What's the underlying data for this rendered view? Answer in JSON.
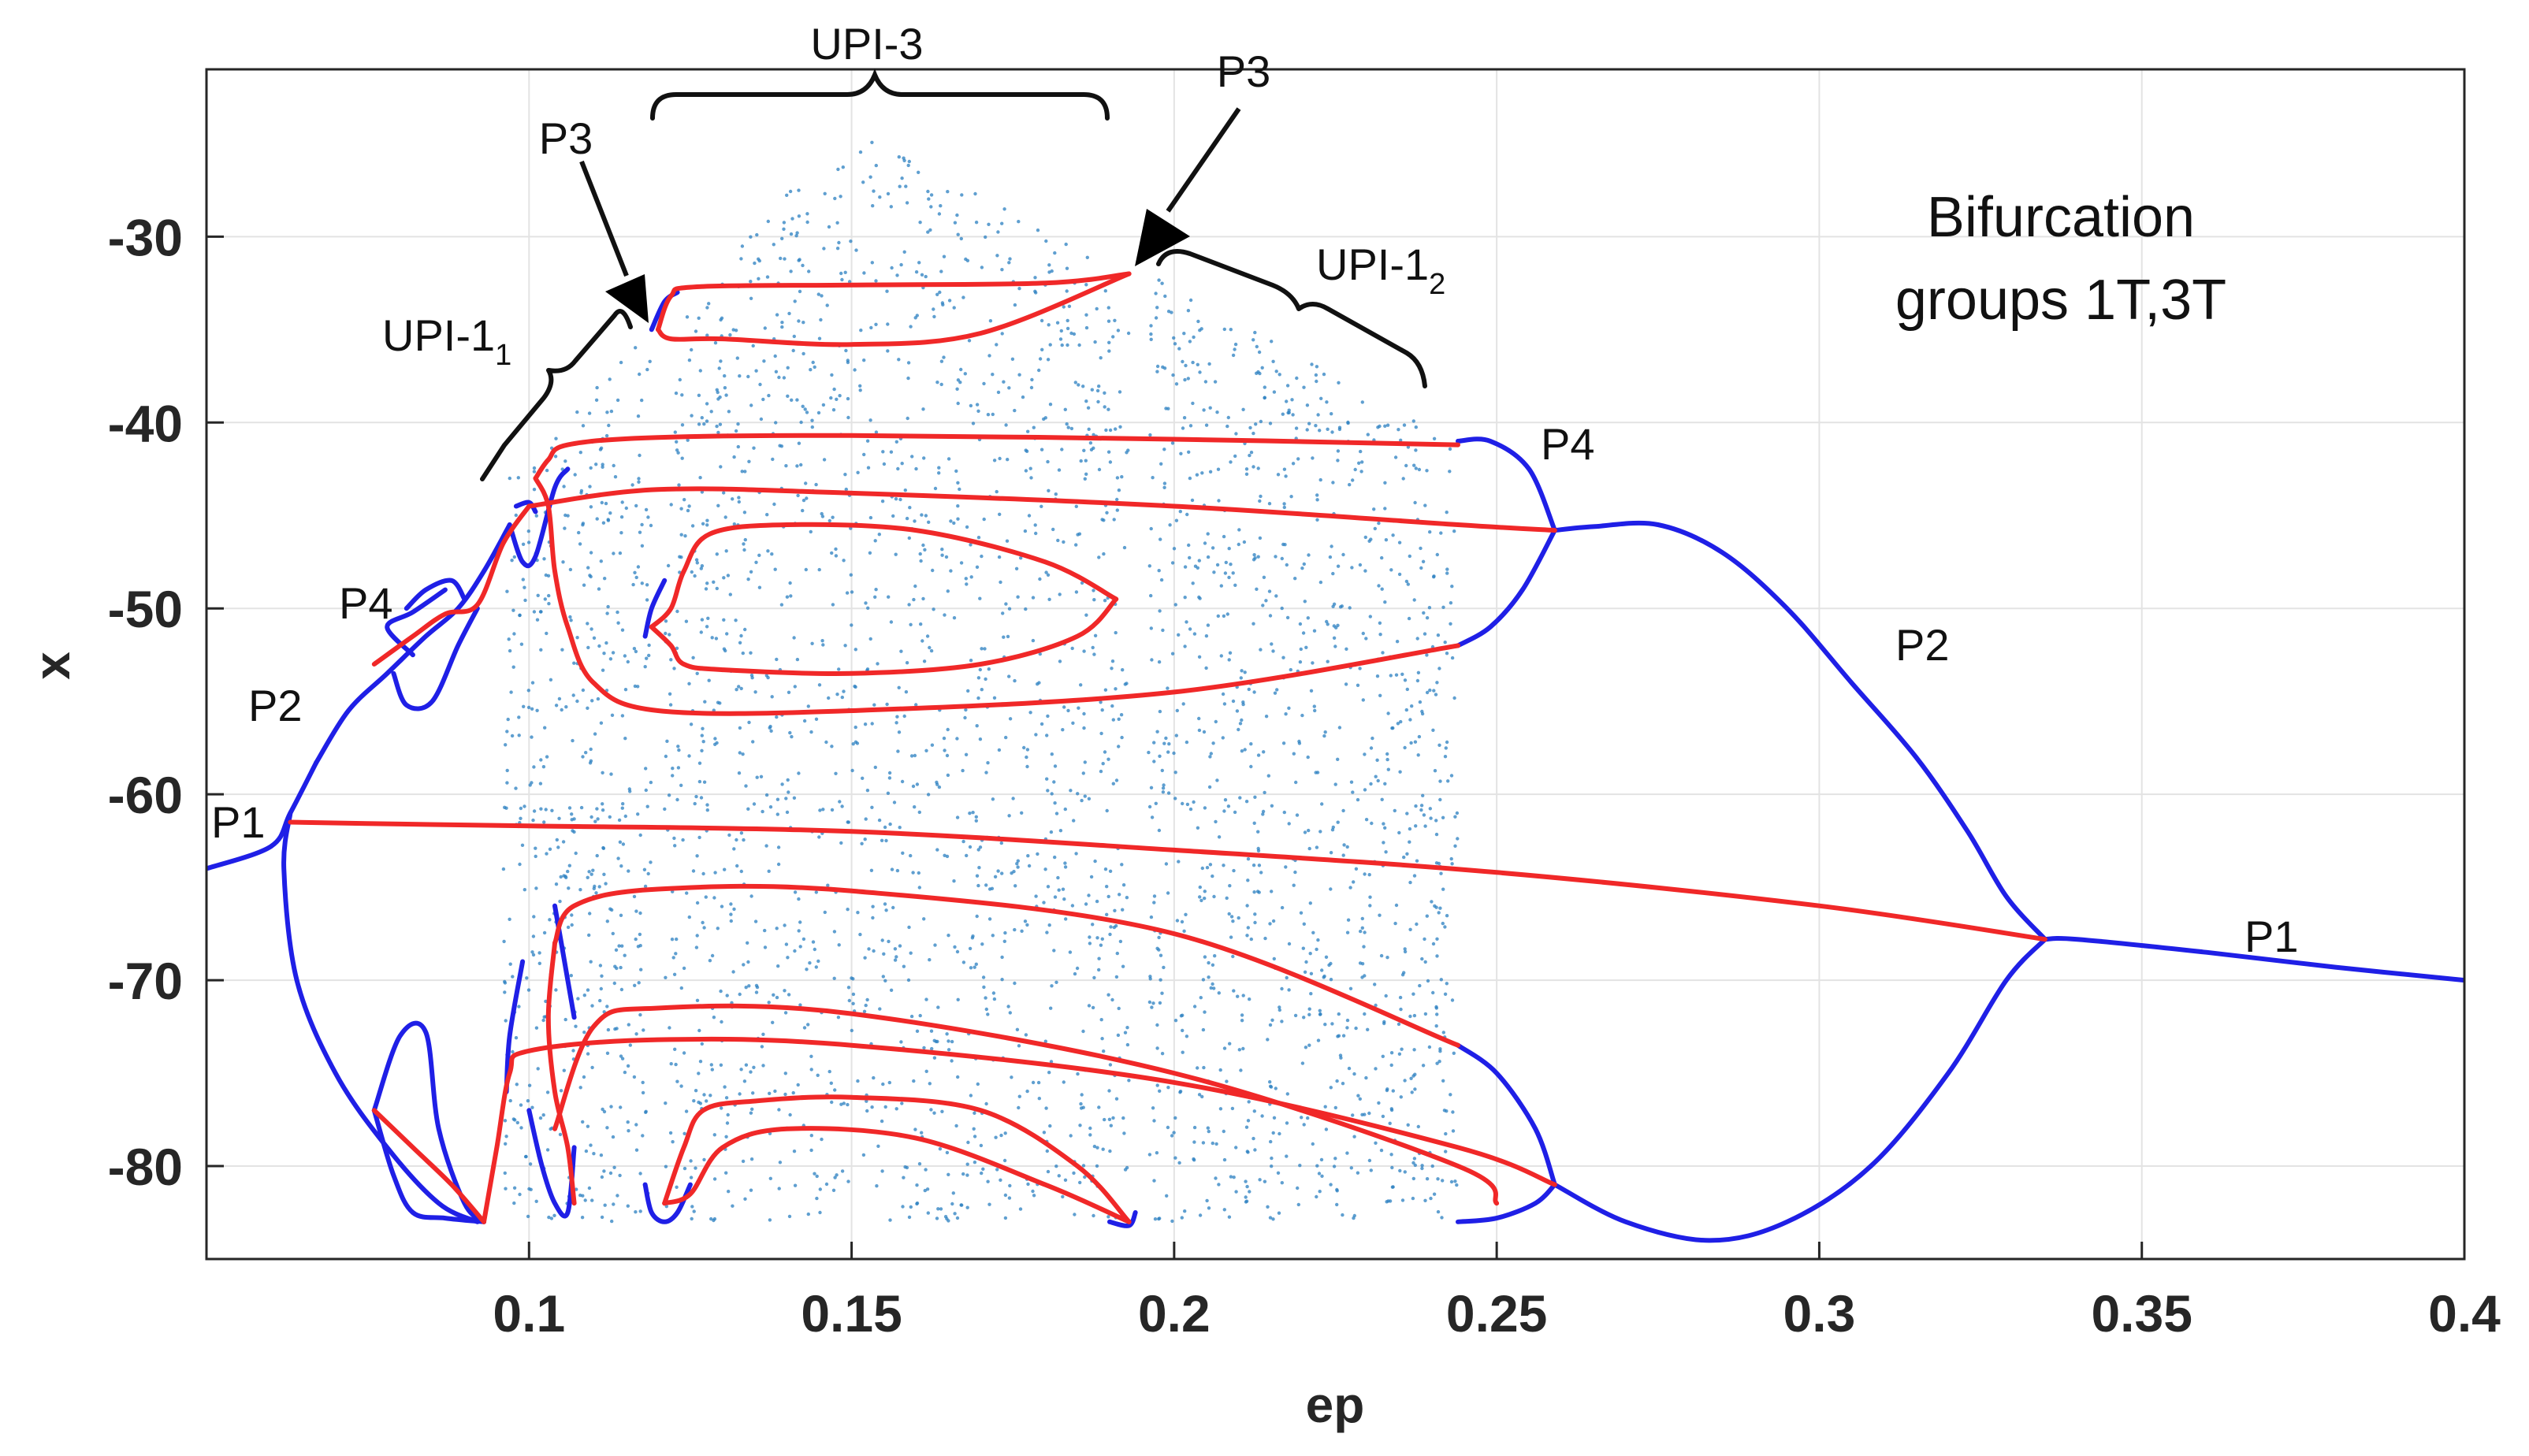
{
  "chart_data": {
    "type": "scatter",
    "title": "",
    "xlabel": "ep",
    "ylabel": "x",
    "xlim": [
      0.05,
      0.4
    ],
    "ylim": [
      -85,
      -21
    ],
    "grid": true,
    "x_ticks": [
      {
        "value": 0.1,
        "label": "0.1"
      },
      {
        "value": 0.15,
        "label": "0.15"
      },
      {
        "value": 0.2,
        "label": "0.2"
      },
      {
        "value": 0.25,
        "label": "0.25"
      },
      {
        "value": 0.3,
        "label": "0.3"
      },
      {
        "value": 0.35,
        "label": "0.35"
      },
      {
        "value": 0.4,
        "label": "0.4"
      }
    ],
    "y_ticks": [
      {
        "value": -30,
        "label": "-30"
      },
      {
        "value": -40,
        "label": "-40"
      },
      {
        "value": -50,
        "label": "-50"
      },
      {
        "value": -60,
        "label": "-60"
      },
      {
        "value": -70,
        "label": "-70"
      },
      {
        "value": -80,
        "label": "-80"
      }
    ],
    "colors": {
      "stable": "#1f1fe6",
      "unstable": "#f02828",
      "chaos": "#2a7fc0",
      "grid": "#e3e3e3"
    },
    "chaos_regions": [
      {
        "x_start": 0.096,
        "x_end": 0.119,
        "x_peak": 0.119,
        "y_top_left": -43,
        "y_top_peak": -35,
        "y_bottom": -83
      },
      {
        "x_start": 0.121,
        "x_end": 0.193,
        "x_peak": 0.149,
        "y_top_left": -35,
        "y_top_peak": -24,
        "y_top_right": -32,
        "y_bottom": -83
      },
      {
        "x_start": 0.196,
        "x_end": 0.244,
        "x_peak": 0.196,
        "y_top_left": -32,
        "y_top_right": -41,
        "y_bottom": -83
      }
    ],
    "series": [
      {
        "role": "stable",
        "points": [
          [
            0.05,
            -64
          ],
          [
            0.06,
            -62.8
          ],
          [
            0.063,
            -61
          ],
          [
            0.067,
            -58.3
          ]
        ]
      },
      {
        "role": "stable",
        "points": [
          [
            0.063,
            -61
          ],
          [
            0.062,
            -64
          ],
          [
            0.064,
            -70
          ],
          [
            0.07,
            -75
          ],
          [
            0.078,
            -79
          ],
          [
            0.086,
            -82
          ],
          [
            0.092,
            -83
          ]
        ]
      },
      {
        "role": "stable",
        "points": [
          [
            0.067,
            -58.3
          ],
          [
            0.072,
            -55.5
          ],
          [
            0.078,
            -53.5
          ],
          [
            0.084,
            -51.5
          ],
          [
            0.089,
            -50
          ],
          [
            0.093,
            -48
          ],
          [
            0.097,
            -45.5
          ]
        ]
      },
      {
        "role": "stable",
        "points": [
          [
            0.082,
            -52.5
          ],
          [
            0.078,
            -51
          ],
          [
            0.082,
            -50.2
          ],
          [
            0.087,
            -49
          ]
        ]
      },
      {
        "role": "stable",
        "points": [
          [
            0.079,
            -53.5
          ],
          [
            0.081,
            -55.2
          ],
          [
            0.085,
            -55
          ],
          [
            0.089,
            -52
          ],
          [
            0.092,
            -50
          ]
        ]
      },
      {
        "role": "stable",
        "points": [
          [
            0.081,
            -50
          ],
          [
            0.084,
            -49
          ],
          [
            0.088,
            -48.5
          ],
          [
            0.09,
            -49.5
          ]
        ]
      },
      {
        "role": "stable",
        "points": [
          [
            0.076,
            -77
          ],
          [
            0.08,
            -73
          ],
          [
            0.084,
            -72.8
          ],
          [
            0.086,
            -78
          ],
          [
            0.09,
            -82
          ],
          [
            0.093,
            -83
          ]
        ]
      },
      {
        "role": "stable",
        "points": [
          [
            0.076,
            -77
          ],
          [
            0.079,
            -80.5
          ],
          [
            0.082,
            -82.5
          ],
          [
            0.087,
            -82.8
          ],
          [
            0.093,
            -83
          ]
        ]
      },
      {
        "role": "stable",
        "points": [
          [
            0.097,
            -45.5
          ],
          [
            0.099,
            -47.5
          ],
          [
            0.101,
            -47.2
          ],
          [
            0.104,
            -43.5
          ],
          [
            0.106,
            -42.5
          ]
        ]
      },
      {
        "role": "stable",
        "points": [
          [
            0.098,
            -44.5
          ],
          [
            0.1,
            -44.3
          ],
          [
            0.101,
            -44.8
          ]
        ]
      },
      {
        "role": "stable",
        "points": [
          [
            0.0965,
            -76
          ],
          [
            0.097,
            -73
          ],
          [
            0.099,
            -69
          ]
        ]
      },
      {
        "role": "stable",
        "points": [
          [
            0.1,
            -77
          ],
          [
            0.102,
            -80
          ],
          [
            0.104,
            -82
          ],
          [
            0.106,
            -82.5
          ],
          [
            0.107,
            -79
          ]
        ]
      },
      {
        "role": "stable",
        "points": [
          [
            0.104,
            -66
          ],
          [
            0.106,
            -70
          ],
          [
            0.107,
            -72
          ]
        ]
      },
      {
        "role": "stable",
        "points": [
          [
            0.119,
            -35
          ],
          [
            0.121,
            -33.5
          ],
          [
            0.123,
            -33
          ]
        ]
      },
      {
        "role": "stable",
        "points": [
          [
            0.118,
            -51.5
          ],
          [
            0.119,
            -50
          ],
          [
            0.121,
            -48.5
          ]
        ]
      },
      {
        "role": "stable",
        "points": [
          [
            0.118,
            -81
          ],
          [
            0.119,
            -82.5
          ],
          [
            0.121,
            -83
          ],
          [
            0.123,
            -82.5
          ],
          [
            0.125,
            -81
          ]
        ]
      },
      {
        "role": "stable",
        "points": [
          [
            0.19,
            -83
          ],
          [
            0.193,
            -83.2
          ],
          [
            0.194,
            -82.5
          ]
        ]
      },
      {
        "role": "stable",
        "points": [
          [
            0.244,
            -41
          ],
          [
            0.249,
            -41
          ],
          [
            0.255,
            -42.5
          ],
          [
            0.259,
            -45.8
          ]
        ]
      },
      {
        "role": "stable",
        "points": [
          [
            0.244,
            -52
          ],
          [
            0.249,
            -51
          ],
          [
            0.254,
            -49
          ],
          [
            0.259,
            -45.8
          ]
        ]
      },
      {
        "role": "stable",
        "points": [
          [
            0.244,
            -73.5
          ],
          [
            0.25,
            -75
          ],
          [
            0.256,
            -78
          ],
          [
            0.259,
            -81
          ]
        ]
      },
      {
        "role": "stable",
        "points": [
          [
            0.244,
            -83
          ],
          [
            0.25,
            -82.8
          ],
          [
            0.256,
            -82
          ],
          [
            0.259,
            -81
          ]
        ]
      },
      {
        "role": "stable",
        "points": [
          [
            0.259,
            -45.8
          ],
          [
            0.265,
            -45.6
          ],
          [
            0.275,
            -45.5
          ],
          [
            0.285,
            -47
          ],
          [
            0.295,
            -50
          ],
          [
            0.305,
            -54
          ],
          [
            0.315,
            -58
          ],
          [
            0.323,
            -62
          ],
          [
            0.329,
            -65.5
          ],
          [
            0.335,
            -67.8
          ]
        ]
      },
      {
        "role": "stable",
        "points": [
          [
            0.259,
            -81
          ],
          [
            0.27,
            -83
          ],
          [
            0.283,
            -84
          ],
          [
            0.295,
            -83
          ],
          [
            0.308,
            -80
          ],
          [
            0.32,
            -75
          ],
          [
            0.329,
            -70
          ],
          [
            0.335,
            -67.8
          ]
        ]
      },
      {
        "role": "stable",
        "points": [
          [
            0.335,
            -67.8
          ],
          [
            0.34,
            -67.8
          ],
          [
            0.36,
            -68.5
          ],
          [
            0.38,
            -69.3
          ],
          [
            0.4,
            -70
          ]
        ]
      },
      {
        "role": "unstable",
        "points": [
          [
            0.063,
            -61.5
          ],
          [
            0.08,
            -61.6
          ],
          [
            0.1,
            -61.7
          ],
          [
            0.15,
            -62
          ],
          [
            0.2,
            -63
          ],
          [
            0.25,
            -64.2
          ],
          [
            0.3,
            -66
          ],
          [
            0.335,
            -67.8
          ]
        ]
      },
      {
        "role": "unstable",
        "points": [
          [
            0.076,
            -53
          ],
          [
            0.082,
            -51.5
          ],
          [
            0.087,
            -50.3
          ],
          [
            0.092,
            -49.8
          ],
          [
            0.096,
            -46.5
          ],
          [
            0.1,
            -44.5
          ]
        ]
      },
      {
        "role": "unstable",
        "points": [
          [
            0.076,
            -77
          ],
          [
            0.082,
            -79
          ],
          [
            0.088,
            -81
          ],
          [
            0.093,
            -83
          ]
        ]
      },
      {
        "role": "unstable",
        "points": [
          [
            0.093,
            -83
          ],
          [
            0.095,
            -79
          ],
          [
            0.097,
            -75
          ],
          [
            0.1,
            -73.8
          ],
          [
            0.12,
            -73.2
          ],
          [
            0.15,
            -73.5
          ],
          [
            0.2,
            -75.5
          ],
          [
            0.244,
            -79
          ],
          [
            0.259,
            -81
          ]
        ]
      },
      {
        "role": "unstable",
        "points": [
          [
            0.1,
            -44.5
          ],
          [
            0.12,
            -43.6
          ],
          [
            0.15,
            -43.8
          ],
          [
            0.2,
            -44.5
          ],
          [
            0.244,
            -45.5
          ],
          [
            0.259,
            -45.8
          ]
        ]
      },
      {
        "role": "unstable",
        "points": [
          [
            0.101,
            -43
          ],
          [
            0.103,
            -42
          ],
          [
            0.106,
            -41.2
          ],
          [
            0.12,
            -40.8
          ],
          [
            0.15,
            -40.7
          ],
          [
            0.2,
            -40.9
          ],
          [
            0.244,
            -41.2
          ]
        ]
      },
      {
        "role": "unstable",
        "points": [
          [
            0.101,
            -43
          ],
          [
            0.103,
            -44.5
          ],
          [
            0.104,
            -48
          ],
          [
            0.106,
            -51
          ],
          [
            0.11,
            -54
          ],
          [
            0.12,
            -55.5
          ],
          [
            0.15,
            -55.5
          ],
          [
            0.2,
            -54.5
          ],
          [
            0.244,
            -52
          ]
        ]
      },
      {
        "role": "unstable",
        "points": [
          [
            0.104,
            -68
          ],
          [
            0.107,
            -66
          ],
          [
            0.12,
            -65.1
          ],
          [
            0.15,
            -65.2
          ],
          [
            0.2,
            -67.5
          ],
          [
            0.244,
            -73.5
          ]
        ]
      },
      {
        "role": "unstable",
        "points": [
          [
            0.104,
            -68
          ],
          [
            0.103,
            -72
          ],
          [
            0.104,
            -76
          ],
          [
            0.106,
            -79
          ],
          [
            0.107,
            -82
          ]
        ]
      },
      {
        "role": "unstable",
        "points": [
          [
            0.104,
            -78
          ],
          [
            0.11,
            -72.5
          ],
          [
            0.12,
            -71.5
          ],
          [
            0.15,
            -71.8
          ],
          [
            0.2,
            -75
          ],
          [
            0.244,
            -80
          ],
          [
            0.25,
            -82
          ]
        ]
      },
      {
        "role": "unstable",
        "points": [
          [
            0.12,
            -35
          ],
          [
            0.122,
            -33.2
          ],
          [
            0.126,
            -32.7
          ],
          [
            0.15,
            -32.6
          ],
          [
            0.18,
            -32.5
          ],
          [
            0.193,
            -32
          ]
        ]
      },
      {
        "role": "unstable",
        "points": [
          [
            0.12,
            -35
          ],
          [
            0.122,
            -35.5
          ],
          [
            0.13,
            -35.5
          ],
          [
            0.15,
            -35.8
          ],
          [
            0.17,
            -35.2
          ],
          [
            0.193,
            -32
          ]
        ]
      },
      {
        "role": "unstable",
        "points": [
          [
            0.119,
            -51
          ],
          [
            0.122,
            -50
          ],
          [
            0.124,
            -48
          ],
          [
            0.128,
            -46
          ],
          [
            0.14,
            -45.5
          ],
          [
            0.16,
            -45.8
          ],
          [
            0.18,
            -47.5
          ],
          [
            0.191,
            -49.5
          ]
        ]
      },
      {
        "role": "unstable",
        "points": [
          [
            0.119,
            -51
          ],
          [
            0.122,
            -52
          ],
          [
            0.124,
            -53
          ],
          [
            0.13,
            -53.3
          ],
          [
            0.15,
            -53.5
          ],
          [
            0.17,
            -53
          ],
          [
            0.185,
            -51.5
          ],
          [
            0.191,
            -49.5
          ]
        ]
      },
      {
        "role": "unstable",
        "points": [
          [
            0.121,
            -82
          ],
          [
            0.124,
            -79
          ],
          [
            0.127,
            -77
          ],
          [
            0.135,
            -76.5
          ],
          [
            0.15,
            -76.3
          ],
          [
            0.17,
            -77
          ],
          [
            0.185,
            -80
          ],
          [
            0.193,
            -83
          ]
        ]
      },
      {
        "role": "unstable",
        "points": [
          [
            0.121,
            -82
          ],
          [
            0.125,
            -81.5
          ],
          [
            0.13,
            -79
          ],
          [
            0.14,
            -78
          ],
          [
            0.16,
            -78.5
          ],
          [
            0.18,
            -81
          ],
          [
            0.193,
            -83
          ]
        ]
      }
    ]
  },
  "annotations": {
    "bifurcation_title_line1": "Bifurcation",
    "bifurcation_title_line2": "groups 1T,3T",
    "upi3": "UPI-3",
    "upi1": "UPI-1",
    "sub1": "1",
    "sub2": "2",
    "p3": "P3",
    "p4": "P4",
    "p2": "P2",
    "p1": "P1"
  }
}
